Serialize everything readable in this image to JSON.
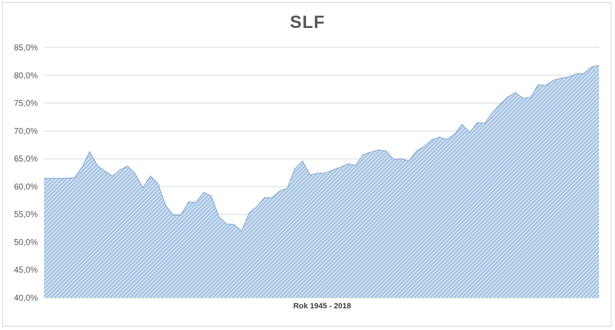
{
  "chart_data": {
    "type": "area",
    "title": "SLF",
    "xlabel": "Rok 1945 - 2018",
    "ylabel": "",
    "ylim": [
      40,
      85
    ],
    "y_ticks": [
      40,
      45,
      50,
      55,
      60,
      65,
      70,
      75,
      80,
      85
    ],
    "y_tick_labels": [
      "40,0%",
      "45,0%",
      "50,0%",
      "55,0%",
      "60,0%",
      "65,0%",
      "70,0%",
      "75,0%",
      "80,0%",
      "85,0%"
    ],
    "grid": true,
    "legend": "none",
    "series": [
      {
        "fill_color": "#bcd3ea",
        "hatch_color": "#7ba5d3",
        "x": [
          1945,
          1946,
          1947,
          1948,
          1949,
          1950,
          1951,
          1952,
          1953,
          1954,
          1955,
          1956,
          1957,
          1958,
          1959,
          1960,
          1961,
          1962,
          1963,
          1964,
          1965,
          1966,
          1967,
          1968,
          1969,
          1970,
          1971,
          1972,
          1973,
          1974,
          1975,
          1976,
          1977,
          1978,
          1979,
          1980,
          1981,
          1982,
          1983,
          1984,
          1985,
          1986,
          1987,
          1988,
          1989,
          1990,
          1991,
          1992,
          1993,
          1994,
          1995,
          1996,
          1997,
          1998,
          1999,
          2000,
          2001,
          2002,
          2003,
          2004,
          2005,
          2006,
          2007,
          2008,
          2009,
          2010,
          2011,
          2012,
          2013,
          2014,
          2015,
          2016,
          2017,
          2018
        ],
        "values": [
          61.5,
          61.5,
          61.5,
          61.5,
          61.6,
          63.5,
          66.3,
          63.8,
          62.8,
          61.9,
          63.0,
          63.7,
          62.3,
          59.8,
          61.9,
          60.5,
          56.6,
          54.9,
          54.9,
          57.2,
          57.2,
          59.0,
          58.3,
          54.6,
          53.3,
          53.2,
          52.0,
          55.3,
          56.4,
          58.0,
          58.0,
          59.2,
          59.7,
          63.2,
          64.6,
          62.1,
          62.4,
          62.4,
          63.0,
          63.5,
          64.1,
          63.8,
          65.8,
          66.2,
          66.6,
          66.4,
          64.9,
          65.0,
          64.6,
          66.4,
          67.2,
          68.4,
          68.9,
          68.5,
          69.4,
          71.2,
          69.7,
          71.5,
          71.4,
          73.3,
          74.8,
          76.1,
          76.9,
          75.9,
          76.0,
          78.3,
          78.2,
          79.1,
          79.5,
          79.7,
          80.3,
          80.3,
          81.5,
          81.8
        ]
      }
    ]
  }
}
